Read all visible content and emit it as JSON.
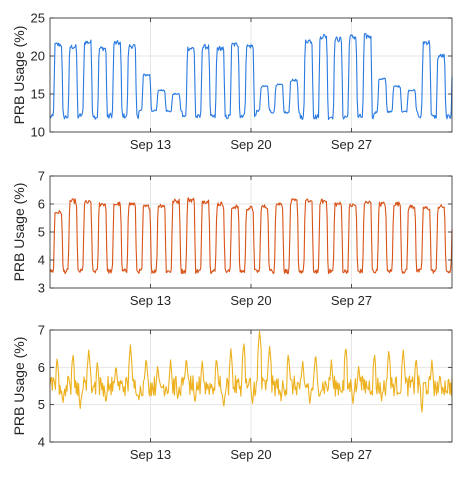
{
  "chart_data": [
    {
      "type": "line",
      "ylabel": "PRB Usage (%)",
      "xlabel": "",
      "title": "",
      "ylim": [
        10,
        25
      ],
      "yticks": [
        10,
        15,
        20,
        25
      ],
      "xticks": [
        "Sep 13",
        "Sep 20",
        "Sep 27"
      ],
      "grid": true,
      "color": "#2a7ae2",
      "daily_peaks": [
        21.5,
        21.2,
        21.8,
        21.0,
        21.7,
        21.3,
        17.5,
        15.5,
        15.0,
        21.0,
        21.2,
        21.0,
        21.5,
        21.3,
        16.0,
        16.2,
        16.8,
        22.0,
        22.6,
        22.2,
        22.5,
        22.6,
        17.0,
        16.0,
        15.5,
        21.8,
        20.0
      ],
      "daily_troughs": [
        12.0,
        12.0,
        12.2,
        12.0,
        12.2,
        12.1,
        12.8,
        12.8,
        12.7,
        12.0,
        12.0,
        12.0,
        12.0,
        12.2,
        12.8,
        12.6,
        12.5,
        12.0,
        12.0,
        12.0,
        12.0,
        12.0,
        12.6,
        12.7,
        12.7,
        12.0,
        12.0
      ]
    },
    {
      "type": "line",
      "ylabel": "PRB Usage (%)",
      "xlabel": "",
      "title": "",
      "ylim": [
        3,
        7
      ],
      "yticks": [
        3,
        4,
        5,
        6,
        7
      ],
      "xticks": [
        "Sep 13",
        "Sep 20",
        "Sep 27"
      ],
      "grid": true,
      "color": "#d95319",
      "daily_peaks": [
        5.7,
        6.1,
        6.05,
        6.0,
        6.0,
        6.0,
        5.9,
        5.95,
        6.1,
        6.15,
        6.1,
        6.0,
        5.9,
        5.85,
        5.9,
        6.0,
        6.1,
        6.1,
        6.1,
        6.0,
        5.95,
        6.05,
        6.0,
        6.0,
        5.9,
        5.85,
        5.9
      ],
      "daily_troughs": [
        3.6,
        3.6,
        3.6,
        3.6,
        3.6,
        3.6,
        3.6,
        3.6,
        3.6,
        3.6,
        3.6,
        3.6,
        3.6,
        3.6,
        3.6,
        3.6,
        3.6,
        3.6,
        3.6,
        3.6,
        3.6,
        3.6,
        3.6,
        3.6,
        3.6,
        3.6,
        3.6
      ]
    },
    {
      "type": "line",
      "ylabel": "PRB Usage (%)",
      "xlabel": "",
      "title": "",
      "ylim": [
        4,
        7
      ],
      "yticks": [
        4,
        5,
        6,
        7
      ],
      "xticks": [
        "Sep 13",
        "Sep 20",
        "Sep 27"
      ],
      "grid": true,
      "color": "#edb120",
      "baseline": 5.5,
      "spikes": [
        [
          0.5,
          6.3
        ],
        [
          1.6,
          6.4
        ],
        [
          2.7,
          6.5
        ],
        [
          3.3,
          6.2
        ],
        [
          4.6,
          6.1
        ],
        [
          5.6,
          6.6
        ],
        [
          6.7,
          6.3
        ],
        [
          7.5,
          6.1
        ],
        [
          8.4,
          6.2
        ],
        [
          9.5,
          6.3
        ],
        [
          10.6,
          6.2
        ],
        [
          11.6,
          6.3
        ],
        [
          12.6,
          6.5
        ],
        [
          13.5,
          6.7
        ],
        [
          14.6,
          7.0
        ],
        [
          15.3,
          6.6
        ],
        [
          16.6,
          6.4
        ],
        [
          17.6,
          6.2
        ],
        [
          18.5,
          6.4
        ],
        [
          19.6,
          6.2
        ],
        [
          20.6,
          6.6
        ],
        [
          21.5,
          6.1
        ],
        [
          22.6,
          6.4
        ],
        [
          23.6,
          6.5
        ],
        [
          24.6,
          6.5
        ],
        [
          25.5,
          6.3
        ],
        [
          26.6,
          6.2
        ]
      ],
      "dips": [
        [
          0.9,
          5.0
        ],
        [
          2.1,
          4.9
        ],
        [
          3.9,
          5.0
        ],
        [
          6.2,
          5.1
        ],
        [
          8.9,
          5.1
        ],
        [
          10.1,
          5.0
        ],
        [
          12.1,
          4.9
        ],
        [
          14.1,
          5.0
        ],
        [
          16.1,
          5.1
        ],
        [
          18.1,
          5.0
        ],
        [
          21.1,
          5.0
        ],
        [
          23.1,
          5.1
        ],
        [
          25.9,
          4.8
        ],
        [
          26.9,
          5.3
        ]
      ]
    }
  ]
}
